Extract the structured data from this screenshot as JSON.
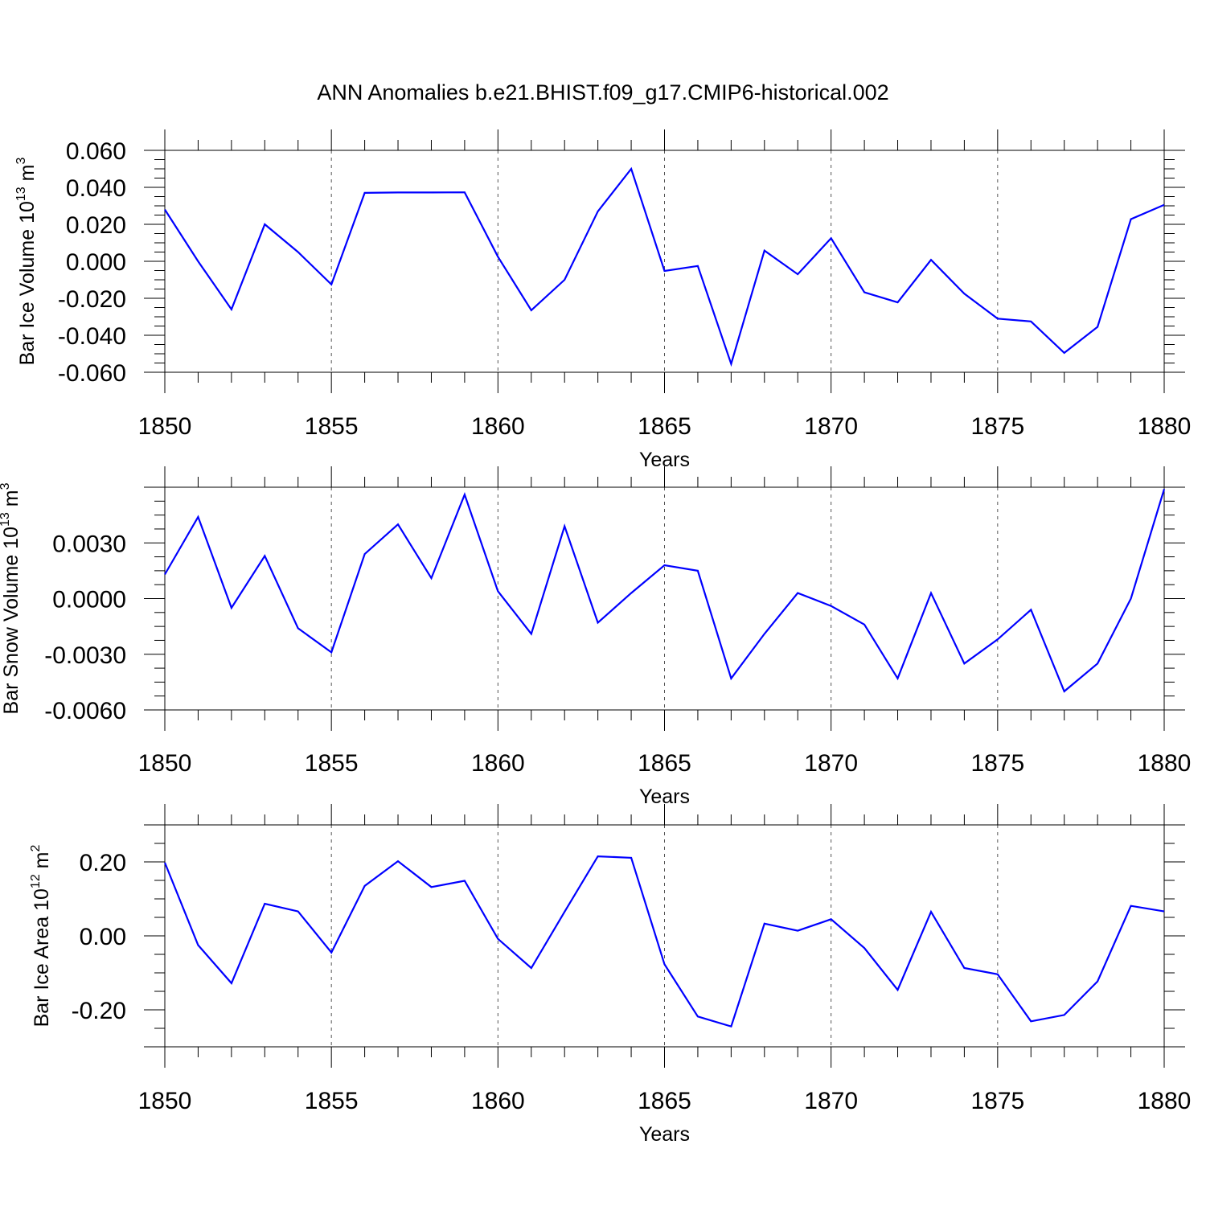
{
  "title": "ANN Anomalies b.e21.BHIST.f09_g17.CMIP6-historical.002",
  "chart_data": [
    {
      "type": "line",
      "title": "",
      "xlabel": "Years",
      "ylabel": {
        "main": "Bar Ice Volume 10",
        "sup": "13",
        "unit": " m",
        "unit_sup": "3"
      },
      "xlim": [
        1850,
        1880
      ],
      "ylim": [
        -0.06,
        0.06
      ],
      "xticks": [
        1850,
        1855,
        1860,
        1865,
        1870,
        1875,
        1880
      ],
      "xtick_labels": [
        "1850",
        "1855",
        "1860",
        "1865",
        "1870",
        "1875",
        "1880"
      ],
      "yticks": [
        -0.06,
        -0.04,
        -0.02,
        0.0,
        0.02,
        0.04,
        0.06
      ],
      "ytick_labels": [
        "-0.060",
        "-0.040",
        "-0.020",
        "0.000",
        "0.020",
        "0.040",
        "0.060"
      ],
      "grid": "vertical-dashed",
      "line_color": "#0000ff",
      "series": [
        {
          "x": [
            1850,
            1851,
            1852,
            1853,
            1854,
            1855,
            1856,
            1857,
            1858,
            1859,
            1860,
            1861,
            1862,
            1863,
            1864,
            1865,
            1866,
            1867,
            1868,
            1869,
            1870,
            1871,
            1872,
            1873,
            1874,
            1875,
            1876,
            1877,
            1878,
            1879,
            1880
          ],
          "values": [
            0.028,
            0.0,
            -0.026,
            0.02,
            0.005,
            -0.0125,
            0.037,
            0.0372,
            0.0372,
            0.0373,
            0.0025,
            -0.0265,
            -0.01,
            0.027,
            0.05,
            -0.0052,
            -0.0025,
            -0.0555,
            0.0058,
            -0.007,
            0.0125,
            -0.0168,
            -0.0222,
            0.0008,
            -0.0175,
            -0.031,
            -0.0325,
            -0.0495,
            -0.0355,
            0.0228,
            0.0305
          ]
        }
      ]
    },
    {
      "type": "line",
      "title": "",
      "xlabel": "Years",
      "ylabel": {
        "main": "Bar Snow Volume 10",
        "sup": "13",
        "unit": " m",
        "unit_sup": "3"
      },
      "xlim": [
        1850,
        1880
      ],
      "ylim": [
        -0.006,
        0.006
      ],
      "xticks": [
        1850,
        1855,
        1860,
        1865,
        1870,
        1875,
        1880
      ],
      "xtick_labels": [
        "1850",
        "1855",
        "1860",
        "1865",
        "1870",
        "1875",
        "1880"
      ],
      "yticks": [
        -0.006,
        -0.003,
        0.0,
        0.003
      ],
      "ytick_labels": [
        "-0.0060",
        "-0.0030",
        "0.0000",
        "0.0030"
      ],
      "grid": "vertical-dashed",
      "line_color": "#0000ff",
      "series": [
        {
          "x": [
            1850,
            1851,
            1852,
            1853,
            1854,
            1855,
            1856,
            1857,
            1858,
            1859,
            1860,
            1861,
            1862,
            1863,
            1864,
            1865,
            1866,
            1867,
            1868,
            1869,
            1870,
            1871,
            1872,
            1873,
            1874,
            1875,
            1876,
            1877,
            1878,
            1879,
            1880
          ],
          "values": [
            0.0013,
            0.0044,
            -0.0005,
            0.0023,
            -0.0016,
            -0.0029,
            0.0024,
            0.004,
            0.0011,
            0.0056,
            0.0004,
            -0.0019,
            0.0039,
            -0.0013,
            0.0003,
            0.0018,
            0.0015,
            -0.0043,
            -0.0019,
            0.0003,
            -0.0004,
            -0.0014,
            -0.0043,
            0.0003,
            -0.0035,
            -0.0022,
            -0.0006,
            -0.005,
            -0.0035,
            0.0,
            0.0059
          ]
        }
      ]
    },
    {
      "type": "line",
      "title": "",
      "xlabel": "Years",
      "ylabel": {
        "main": "Bar Ice Area 10",
        "sup": "12",
        "unit": " m",
        "unit_sup": "2"
      },
      "xlim": [
        1850,
        1880
      ],
      "ylim": [
        -0.3,
        0.3
      ],
      "xticks": [
        1850,
        1855,
        1860,
        1865,
        1870,
        1875,
        1880
      ],
      "xtick_labels": [
        "1850",
        "1855",
        "1860",
        "1865",
        "1870",
        "1875",
        "1880"
      ],
      "yticks": [
        -0.2,
        0.0,
        0.2
      ],
      "ytick_labels": [
        "-0.20",
        "0.00",
        "0.20"
      ],
      "grid": "vertical-dashed",
      "line_color": "#0000ff",
      "series": [
        {
          "x": [
            1850,
            1851,
            1852,
            1853,
            1854,
            1855,
            1856,
            1857,
            1858,
            1859,
            1860,
            1861,
            1862,
            1863,
            1864,
            1865,
            1866,
            1867,
            1868,
            1869,
            1870,
            1871,
            1872,
            1873,
            1874,
            1875,
            1876,
            1877,
            1878,
            1879,
            1880
          ],
          "values": [
            0.198,
            -0.025,
            -0.128,
            0.087,
            0.066,
            -0.045,
            0.135,
            0.202,
            0.132,
            0.149,
            -0.008,
            -0.087,
            0.065,
            0.215,
            0.211,
            -0.077,
            -0.218,
            -0.245,
            0.033,
            0.014,
            0.045,
            -0.033,
            -0.146,
            0.065,
            -0.087,
            -0.104,
            -0.231,
            -0.214,
            -0.123,
            0.081,
            0.066
          ]
        }
      ]
    }
  ]
}
